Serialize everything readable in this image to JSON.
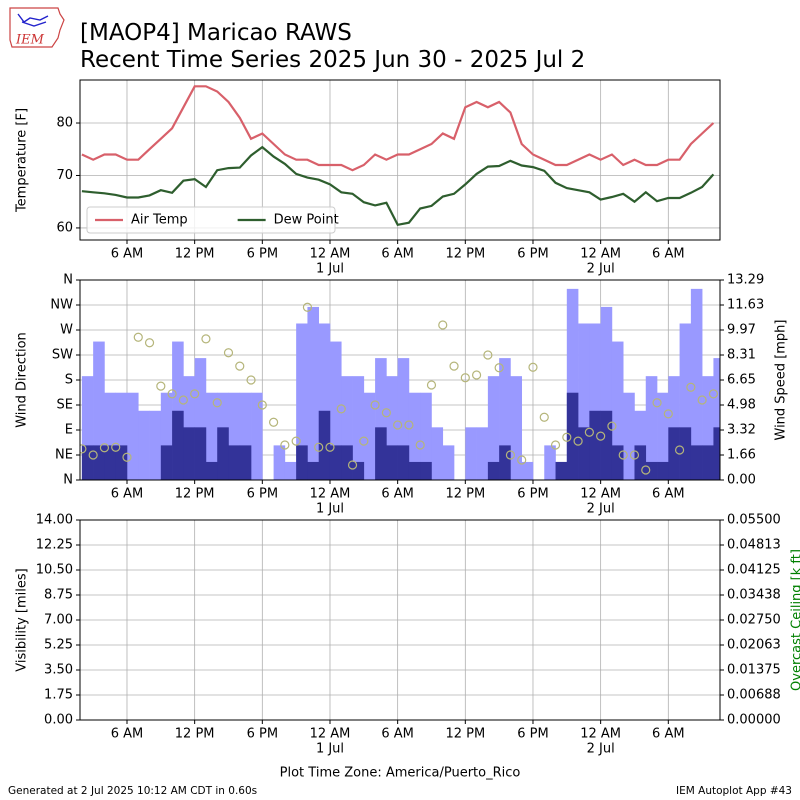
{
  "header": {
    "logo_text": "IEM",
    "title": "[MAOP4] Maricao RAWS",
    "subtitle": "Recent Time Series 2025 Jun 30 - 2025 Jul 2"
  },
  "chart_data": [
    {
      "type": "line",
      "ylabel": "Temperature [F]",
      "legend": "lower left",
      "grid": true,
      "xlim": [
        "2025-06-30T01:50",
        "2025-07-02T10:35"
      ],
      "xticks": [
        {
          "value": "2025-06-30T06:00",
          "label": "6 AM"
        },
        {
          "value": "2025-06-30T12:00",
          "label": "12 PM"
        },
        {
          "value": "2025-06-30T18:00",
          "label": "6 PM"
        },
        {
          "value": "2025-07-01T00:00",
          "label": "12 AM",
          "date": "1 Jul"
        },
        {
          "value": "2025-07-01T06:00",
          "label": "6 AM"
        },
        {
          "value": "2025-07-01T12:00",
          "label": "12 PM"
        },
        {
          "value": "2025-07-01T18:00",
          "label": "6 PM"
        },
        {
          "value": "2025-07-02T00:00",
          "label": "12 AM",
          "date": "2 Jul"
        },
        {
          "value": "2025-07-02T06:00",
          "label": "6 AM"
        }
      ],
      "ylim": [
        57.7,
        88.2
      ],
      "yticks": [
        60,
        70,
        80
      ],
      "x": [
        "2025-06-30T02:00",
        "2025-06-30T03:00",
        "2025-06-30T04:00",
        "2025-06-30T05:00",
        "2025-06-30T06:00",
        "2025-06-30T07:00",
        "2025-06-30T08:00",
        "2025-06-30T09:00",
        "2025-06-30T10:00",
        "2025-06-30T11:00",
        "2025-06-30T12:00",
        "2025-06-30T13:00",
        "2025-06-30T14:00",
        "2025-06-30T15:00",
        "2025-06-30T16:00",
        "2025-06-30T17:00",
        "2025-06-30T18:00",
        "2025-06-30T19:00",
        "2025-06-30T20:00",
        "2025-06-30T21:00",
        "2025-06-30T22:00",
        "2025-06-30T23:00",
        "2025-07-01T00:00",
        "2025-07-01T01:00",
        "2025-07-01T02:00",
        "2025-07-01T03:00",
        "2025-07-01T04:00",
        "2025-07-01T05:00",
        "2025-07-01T06:00",
        "2025-07-01T07:00",
        "2025-07-01T08:00",
        "2025-07-01T09:00",
        "2025-07-01T10:00",
        "2025-07-01T11:00",
        "2025-07-01T12:00",
        "2025-07-01T13:00",
        "2025-07-01T14:00",
        "2025-07-01T15:00",
        "2025-07-01T16:00",
        "2025-07-01T17:00",
        "2025-07-01T18:00",
        "2025-07-01T19:00",
        "2025-07-01T20:00",
        "2025-07-01T21:00",
        "2025-07-01T22:00",
        "2025-07-01T23:00",
        "2025-07-02T00:00",
        "2025-07-02T01:00",
        "2025-07-02T02:00",
        "2025-07-02T03:00",
        "2025-07-02T04:00",
        "2025-07-02T05:00",
        "2025-07-02T06:00",
        "2025-07-02T07:00",
        "2025-07-02T08:00",
        "2025-07-02T09:00",
        "2025-07-02T10:00"
      ],
      "series": [
        {
          "name": "Air Temp",
          "color": "#d8606a",
          "values": [
            74,
            73,
            74,
            74,
            73,
            73,
            75,
            77,
            79,
            83,
            87,
            87,
            86,
            84,
            81,
            77,
            78,
            76,
            74,
            73,
            73,
            72,
            72,
            72,
            71,
            72,
            74,
            73,
            74,
            74,
            75,
            76,
            78,
            77,
            83,
            84,
            83,
            84,
            82,
            76,
            74,
            73,
            72,
            72,
            73,
            74,
            73,
            74,
            72,
            73,
            72,
            72,
            73,
            73,
            76,
            78,
            80
          ]
        },
        {
          "name": "Dew Point",
          "color": "#2e5e2e",
          "values": [
            67,
            66.8,
            66.6,
            66.3,
            65.8,
            65.8,
            66.2,
            67.2,
            66.7,
            69,
            69.3,
            67.8,
            71,
            71.4,
            71.5,
            73.8,
            75.4,
            73.6,
            72.2,
            70.3,
            69.6,
            69.2,
            68.3,
            66.8,
            66.5,
            64.9,
            64.3,
            64.8,
            60.6,
            61,
            63.7,
            64.2,
            66,
            66.5,
            68.3,
            70.3,
            71.7,
            71.8,
            72.8,
            71.9,
            71.6,
            70.9,
            68.6,
            67.6,
            67.2,
            66.8,
            65.4,
            65.9,
            66.5,
            65,
            66.8,
            65.1,
            65.7,
            65.7,
            66.7,
            67.8,
            70.2
          ]
        }
      ]
    },
    {
      "type": "bar",
      "ylabel": "Wind Direction",
      "y2label": "Wind Speed [mph]",
      "grid": true,
      "xlim": [
        "2025-06-30T01:50",
        "2025-07-02T10:35"
      ],
      "xticks": [
        {
          "value": "2025-06-30T06:00",
          "label": "6 AM"
        },
        {
          "value": "2025-06-30T12:00",
          "label": "12 PM"
        },
        {
          "value": "2025-06-30T18:00",
          "label": "6 PM"
        },
        {
          "value": "2025-07-01T00:00",
          "label": "12 AM",
          "date": "1 Jul"
        },
        {
          "value": "2025-07-01T06:00",
          "label": "6 AM"
        },
        {
          "value": "2025-07-01T12:00",
          "label": "12 PM"
        },
        {
          "value": "2025-07-01T18:00",
          "label": "6 PM"
        },
        {
          "value": "2025-07-02T00:00",
          "label": "12 AM",
          "date": "2 Jul"
        },
        {
          "value": "2025-07-02T06:00",
          "label": "6 AM"
        }
      ],
      "ylim": [
        0,
        360
      ],
      "yticks": [
        {
          "value": 0,
          "label": "N"
        },
        {
          "value": 45,
          "label": "NE"
        },
        {
          "value": 90,
          "label": "E"
        },
        {
          "value": 135,
          "label": "SE"
        },
        {
          "value": 180,
          "label": "S"
        },
        {
          "value": 225,
          "label": "SW"
        },
        {
          "value": 270,
          "label": "W"
        },
        {
          "value": 315,
          "label": "NW"
        },
        {
          "value": 360,
          "label": "N"
        }
      ],
      "y2lim": [
        0,
        13.29
      ],
      "y2ticks": [
        {
          "value": 0,
          "label": "0.00"
        },
        {
          "value": 1.66125,
          "label": "1.66"
        },
        {
          "value": 3.3225,
          "label": "3.32"
        },
        {
          "value": 4.98375,
          "label": "4.98"
        },
        {
          "value": 6.645,
          "label": "6.65"
        },
        {
          "value": 8.30625,
          "label": "8.31"
        },
        {
          "value": 9.9675,
          "label": "9.97"
        },
        {
          "value": 11.62875,
          "label": "11.63"
        },
        {
          "value": 13.29,
          "label": "13.29"
        }
      ],
      "x": [
        "2025-06-30T02:00",
        "2025-06-30T03:00",
        "2025-06-30T04:00",
        "2025-06-30T05:00",
        "2025-06-30T06:00",
        "2025-06-30T07:00",
        "2025-06-30T08:00",
        "2025-06-30T09:00",
        "2025-06-30T10:00",
        "2025-06-30T11:00",
        "2025-06-30T12:00",
        "2025-06-30T13:00",
        "2025-06-30T14:00",
        "2025-06-30T15:00",
        "2025-06-30T16:00",
        "2025-06-30T17:00",
        "2025-06-30T18:00",
        "2025-06-30T19:00",
        "2025-06-30T20:00",
        "2025-06-30T21:00",
        "2025-06-30T22:00",
        "2025-06-30T23:00",
        "2025-07-01T00:00",
        "2025-07-01T01:00",
        "2025-07-01T02:00",
        "2025-07-01T03:00",
        "2025-07-01T04:00",
        "2025-07-01T05:00",
        "2025-07-01T06:00",
        "2025-07-01T07:00",
        "2025-07-01T08:00",
        "2025-07-01T09:00",
        "2025-07-01T10:00",
        "2025-07-01T11:00",
        "2025-07-01T12:00",
        "2025-07-01T13:00",
        "2025-07-01T14:00",
        "2025-07-01T15:00",
        "2025-07-01T16:00",
        "2025-07-01T17:00",
        "2025-07-01T18:00",
        "2025-07-01T19:00",
        "2025-07-01T20:00",
        "2025-07-01T21:00",
        "2025-07-01T22:00",
        "2025-07-01T23:00",
        "2025-07-02T00:00",
        "2025-07-02T01:00",
        "2025-07-02T02:00",
        "2025-07-02T03:00",
        "2025-07-02T04:00",
        "2025-07-02T05:00",
        "2025-07-02T06:00",
        "2025-07-02T07:00",
        "2025-07-02T08:00",
        "2025-07-02T09:00",
        "2025-07-02T10:00"
      ],
      "series": [
        {
          "kind": "bar",
          "axis": "y2",
          "color": "#9999ff",
          "values": [
            6.9,
            9.2,
            5.8,
            5.8,
            5.8,
            4.6,
            4.6,
            5.8,
            9.2,
            6.9,
            8.1,
            5.8,
            5.8,
            5.8,
            5.8,
            5.8,
            0,
            2.3,
            1.2,
            10.4,
            11.5,
            10.4,
            9.2,
            6.9,
            6.9,
            5.8,
            8.1,
            6.9,
            8.1,
            5.8,
            5.8,
            3.5,
            2.3,
            0,
            3.5,
            3.5,
            6.9,
            8.1,
            6.9,
            1.2,
            0,
            2.3,
            1.2,
            12.7,
            10.4,
            10.4,
            11.5,
            9.2,
            5.8,
            4.6,
            6.9,
            5.8,
            6.9,
            10.4,
            12.7,
            6.9,
            8.1
          ]
        },
        {
          "kind": "bar",
          "axis": "y2",
          "color": "#333399",
          "values": [
            2.3,
            2.3,
            2.3,
            2.3,
            0,
            0,
            0,
            2.3,
            4.6,
            3.5,
            3.5,
            1.2,
            3.5,
            2.3,
            2.3,
            0,
            0,
            0,
            0,
            2.3,
            1.2,
            4.6,
            2.3,
            2.3,
            1.2,
            0,
            3.5,
            2.3,
            2.3,
            1.2,
            1.2,
            0,
            0,
            0,
            0,
            0,
            1.2,
            2.3,
            0,
            0,
            0,
            0,
            1.2,
            5.8,
            3.5,
            4.6,
            4.6,
            2.3,
            0,
            2.3,
            1.2,
            1.2,
            3.5,
            3.5,
            2.3,
            2.3,
            3.5
          ]
        },
        {
          "kind": "scatter",
          "color": "#b5b57a",
          "values": [
            56,
            45,
            58,
            59,
            41,
            257,
            247,
            169,
            155,
            144,
            155,
            254,
            139,
            229,
            205,
            180,
            135,
            104,
            63,
            70,
            311,
            59,
            59,
            128,
            27,
            70,
            135,
            121,
            99,
            99,
            63,
            171,
            279,
            205,
            184,
            189,
            225,
            202,
            45,
            36,
            203,
            113,
            63,
            77,
            70,
            86,
            79,
            97,
            45,
            45,
            18,
            139,
            119,
            54,
            167,
            144,
            155
          ]
        }
      ]
    },
    {
      "type": "line",
      "ylabel": "Visibility [miles]",
      "y2label": "Overcast Ceiling [k ft]",
      "y2label_color": "#008000",
      "xlabel": "Plot Time Zone: America/Puerto_Rico",
      "grid": true,
      "xlim": [
        "2025-06-30T01:50",
        "2025-07-02T10:35"
      ],
      "xticks": [
        {
          "value": "2025-06-30T06:00",
          "label": "6 AM"
        },
        {
          "value": "2025-06-30T12:00",
          "label": "12 PM"
        },
        {
          "value": "2025-06-30T18:00",
          "label": "6 PM"
        },
        {
          "value": "2025-07-01T00:00",
          "label": "12 AM",
          "date": "1 Jul"
        },
        {
          "value": "2025-07-01T06:00",
          "label": "6 AM"
        },
        {
          "value": "2025-07-01T12:00",
          "label": "12 PM"
        },
        {
          "value": "2025-07-01T18:00",
          "label": "6 PM"
        },
        {
          "value": "2025-07-02T00:00",
          "label": "12 AM",
          "date": "2 Jul"
        },
        {
          "value": "2025-07-02T06:00",
          "label": "6 AM"
        }
      ],
      "ylim": [
        0,
        14
      ],
      "yticks": [
        {
          "value": 0,
          "label": "0.00"
        },
        {
          "value": 1.75,
          "label": "1.75"
        },
        {
          "value": 3.5,
          "label": "3.50"
        },
        {
          "value": 5.25,
          "label": "5.25"
        },
        {
          "value": 7,
          "label": "7.00"
        },
        {
          "value": 8.75,
          "label": "8.75"
        },
        {
          "value": 10.5,
          "label": "10.50"
        },
        {
          "value": 12.25,
          "label": "12.25"
        },
        {
          "value": 14,
          "label": "14.00"
        }
      ],
      "y2lim": [
        0,
        0.055
      ],
      "y2ticks": [
        {
          "value": 0,
          "label": "0.00000"
        },
        {
          "value": 0.006875,
          "label": "0.00688"
        },
        {
          "value": 0.01375,
          "label": "0.01375"
        },
        {
          "value": 0.020625,
          "label": "0.02063"
        },
        {
          "value": 0.0275,
          "label": "0.02750"
        },
        {
          "value": 0.034375,
          "label": "0.03438"
        },
        {
          "value": 0.04125,
          "label": "0.04125"
        },
        {
          "value": 0.048125,
          "label": "0.04813"
        },
        {
          "value": 0.055,
          "label": "0.05500"
        }
      ],
      "series": []
    }
  ],
  "footer": {
    "left": "Generated at 2 Jul 2025 10:12 AM CDT in 0.60s",
    "right": "IEM Autoplot App #43"
  }
}
